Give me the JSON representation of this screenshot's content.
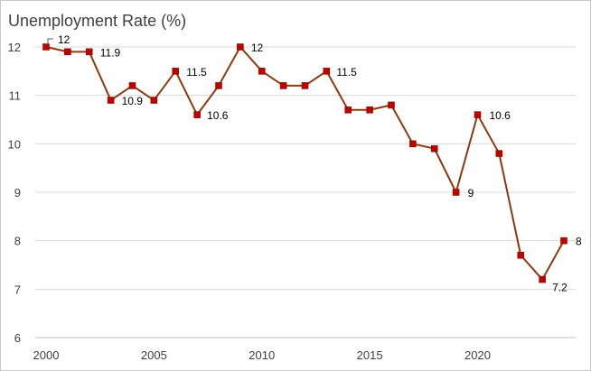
{
  "chart_data": {
    "type": "line",
    "title": "Unemployment Rate (%)",
    "xlabel": "",
    "ylabel": "",
    "x": [
      2000,
      2001,
      2002,
      2003,
      2004,
      2005,
      2006,
      2007,
      2008,
      2009,
      2010,
      2011,
      2012,
      2013,
      2014,
      2015,
      2016,
      2017,
      2018,
      2019,
      2020,
      2021,
      2022,
      2023,
      2024
    ],
    "series": [
      {
        "values": [
          12.0,
          11.9,
          11.9,
          10.9,
          11.2,
          10.9,
          11.5,
          10.6,
          11.2,
          12.0,
          11.5,
          11.2,
          11.2,
          11.5,
          10.7,
          10.7,
          10.8,
          10.0,
          9.9,
          9.0,
          10.6,
          9.8,
          7.7,
          7.2,
          8.0
        ]
      }
    ],
    "data_labels": [
      {
        "x": 2000,
        "text": "12"
      },
      {
        "x": 2002,
        "text": "11.9"
      },
      {
        "x": 2003,
        "text": "10.9"
      },
      {
        "x": 2006,
        "text": "11.5"
      },
      {
        "x": 2007,
        "text": "10.6"
      },
      {
        "x": 2009,
        "text": "12"
      },
      {
        "x": 2013,
        "text": "11.5"
      },
      {
        "x": 2019,
        "text": "9"
      },
      {
        "x": 2020,
        "text": "10.6"
      },
      {
        "x": 2023,
        "text": "7.2"
      },
      {
        "x": 2024,
        "text": "8"
      }
    ],
    "x_ticks": [
      "2000",
      "2005",
      "2010",
      "2015",
      "2020"
    ],
    "y_ticks": [
      "6",
      "7",
      "8",
      "9",
      "10",
      "11",
      "12"
    ],
    "xlim": [
      2000,
      2024
    ],
    "ylim": [
      6,
      12
    ],
    "grid": true,
    "legend": "none",
    "colors": {
      "line": "#8b3a0f",
      "marker": "#c00000",
      "grid": "#d9d9d9",
      "axis": "#bfbfbf"
    }
  }
}
